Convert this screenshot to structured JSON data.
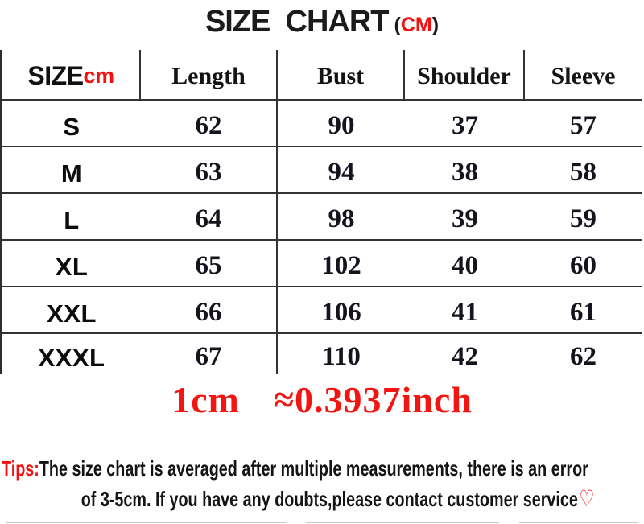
{
  "title": {
    "main": "SIZE  CHART",
    "unit_open": "(",
    "unit": "CM",
    "unit_close": ")"
  },
  "table": {
    "header": {
      "size_label": "SIZE",
      "size_unit": "cm",
      "columns": [
        "Length",
        "Bust",
        "Shoulder",
        "Sleeve"
      ]
    },
    "rows": [
      {
        "size": "S",
        "length": "62",
        "bust": "90",
        "shoulder": "37",
        "sleeve": "57"
      },
      {
        "size": "M",
        "length": "63",
        "bust": "94",
        "shoulder": "38",
        "sleeve": "58"
      },
      {
        "size": "L",
        "length": "64",
        "bust": "98",
        "shoulder": "39",
        "sleeve": "59"
      },
      {
        "size": "XL",
        "length": "65",
        "bust": "102",
        "shoulder": "40",
        "sleeve": "60"
      },
      {
        "size": "XXL",
        "length": "66",
        "bust": "106",
        "shoulder": "41",
        "sleeve": "61"
      },
      {
        "size": "XXXL",
        "length": "67",
        "bust": "110",
        "shoulder": "42",
        "sleeve": "62"
      }
    ]
  },
  "conversion": {
    "left": "1cm",
    "right": "≈0.3937inch"
  },
  "tips": {
    "label": "Tips:",
    "line1": "The size chart is averaged after multiple measurements, there is an error",
    "line2": "of 3-5cm. If you have any doubts,please contact customer service",
    "heart": "♡"
  },
  "colors": {
    "accent_red": "#f50f0f",
    "text_black": "#141414",
    "border_dark": "#333333"
  },
  "chart_data": {
    "type": "table",
    "title": "SIZE CHART (CM)",
    "unit": "cm",
    "columns": [
      "SIZE",
      "Length",
      "Bust",
      "Shoulder",
      "Sleeve"
    ],
    "rows": [
      [
        "S",
        62,
        90,
        37,
        57
      ],
      [
        "M",
        63,
        94,
        38,
        58
      ],
      [
        "L",
        64,
        98,
        39,
        59
      ],
      [
        "XL",
        65,
        102,
        40,
        60
      ],
      [
        "XXL",
        66,
        106,
        41,
        61
      ],
      [
        "XXXL",
        67,
        110,
        42,
        62
      ]
    ],
    "notes": [
      "1cm ≈0.3937inch",
      "Tips:The size chart is averaged after multiple measurements, there is an error of 3-5cm. If you have any doubts,please contact customer service"
    ]
  }
}
